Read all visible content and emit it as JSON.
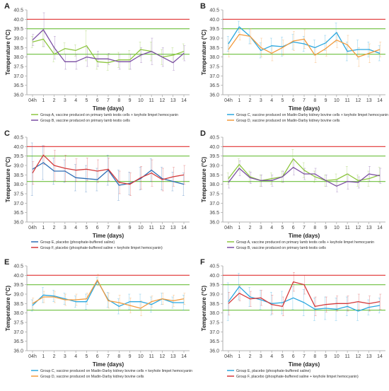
{
  "figure": {
    "common": {
      "ylabel": "Temperature (°C)",
      "xlabel": "Time (days)",
      "x_ticks": [
        "04h",
        "1",
        "2",
        "3",
        "4",
        "5",
        "6",
        "7",
        "8",
        "9",
        "10",
        "11",
        "12",
        "13",
        "14"
      ],
      "y_ticks": [
        "36.0",
        "36.5",
        "37.0",
        "37.5",
        "38.0",
        "38.5",
        "39.0",
        "39.5",
        "40.0",
        "40.5"
      ],
      "ylim": [
        36.0,
        40.5
      ],
      "ref_lines": [
        {
          "value": 40.0,
          "color": "#e03030"
        },
        {
          "value": 39.5,
          "color": "#6cbf3c"
        },
        {
          "value": 38.15,
          "color": "#6cbf3c"
        }
      ]
    }
  },
  "chart_data": [
    {
      "panel": "A",
      "type": "line",
      "series": [
        {
          "name": "Group A, vaccine produced on primary lamb testis cells + keyhole limpet hemocyanin",
          "color": "#8dc63f",
          "values": [
            38.8,
            38.95,
            38.15,
            38.45,
            38.35,
            38.6,
            37.75,
            37.7,
            37.85,
            37.85,
            38.4,
            38.3,
            38.0,
            38.1,
            38.3
          ],
          "errors": [
            0.3,
            0.4,
            0.4,
            0.3,
            0.3,
            0.8,
            0.4,
            0.4,
            0.4,
            0.5,
            0.4,
            0.5,
            0.4,
            0.4,
            0.4
          ]
        },
        {
          "name": "Group B, vaccine produced on primary lamb testis cells",
          "color": "#7b4ea3",
          "values": [
            38.9,
            39.45,
            38.5,
            37.75,
            37.75,
            38.0,
            37.9,
            37.9,
            37.75,
            37.75,
            38.1,
            38.3,
            38.0,
            37.7,
            38.2
          ],
          "errors": [
            0.3,
            0.9,
            0.6,
            0.4,
            0.4,
            0.5,
            0.4,
            0.3,
            0.4,
            0.4,
            0.4,
            0.7,
            0.5,
            0.4,
            0.4
          ]
        }
      ]
    },
    {
      "panel": "B",
      "type": "line",
      "series": [
        {
          "name": "Group C, vaccine produced on Madin-Darby kidney bovine cells + keyhole limpet hemocyanin",
          "color": "#2aa7df",
          "values": [
            38.7,
            39.6,
            39.1,
            38.35,
            38.6,
            38.55,
            38.8,
            38.7,
            38.5,
            38.75,
            39.3,
            38.3,
            38.4,
            38.4,
            38.2
          ],
          "errors": [
            0.4,
            0.3,
            0.4,
            0.4,
            0.4,
            0.5,
            0.4,
            0.4,
            0.4,
            0.4,
            0.5,
            0.5,
            0.5,
            0.4,
            0.4
          ]
        },
        {
          "name": "Group D, vaccine produced on Madin-Darby kidney bovine cells",
          "color": "#f39a3c",
          "values": [
            38.4,
            39.2,
            39.1,
            38.5,
            38.2,
            38.5,
            38.85,
            38.95,
            38.1,
            38.45,
            38.9,
            38.65,
            38.0,
            38.2,
            38.4
          ],
          "errors": [
            0.4,
            0.3,
            0.4,
            0.5,
            0.4,
            0.4,
            0.5,
            0.5,
            0.4,
            0.4,
            0.4,
            0.5,
            0.5,
            0.5,
            0.4
          ]
        }
      ]
    },
    {
      "panel": "C",
      "type": "line",
      "series": [
        {
          "name": "Group E, placebo (phosphate-buffered saline)",
          "color": "#2d6db5",
          "values": [
            38.8,
            39.15,
            38.7,
            38.7,
            38.35,
            38.3,
            38.25,
            38.75,
            37.95,
            38.05,
            38.3,
            38.75,
            38.3,
            38.15,
            38.0
          ],
          "errors": [
            1.4,
            0.9,
            0.7,
            0.6,
            0.7,
            0.7,
            0.6,
            0.8,
            0.8,
            0.6,
            0.6,
            0.6,
            0.6,
            0.5,
            0.6
          ]
        },
        {
          "name": "Group F, placebo (phosphate-buffered saline + keyhole limpet hemocyanin)",
          "color": "#d4393a",
          "values": [
            38.6,
            39.55,
            39.0,
            38.85,
            38.75,
            38.8,
            38.7,
            38.8,
            38.1,
            38.0,
            38.35,
            38.6,
            38.25,
            38.4,
            38.5
          ],
          "errors": [
            0.6,
            0.5,
            0.8,
            0.7,
            0.6,
            0.6,
            0.6,
            0.6,
            0.6,
            0.6,
            0.6,
            0.7,
            0.6,
            0.5,
            0.5
          ]
        }
      ]
    },
    {
      "panel": "D",
      "type": "line",
      "series": [
        {
          "name": "Group A, vaccine produced on primary lamb testis cells + keyhole limpet hemocyanin",
          "color": "#8dc63f",
          "values": [
            38.3,
            39.05,
            38.4,
            38.2,
            38.3,
            38.4,
            39.35,
            38.75,
            38.4,
            38.2,
            38.25,
            38.55,
            38.2,
            38.3,
            38.5
          ],
          "errors": [
            0.3,
            0.3,
            0.3,
            0.3,
            0.3,
            0.3,
            0.5,
            0.4,
            0.3,
            0.3,
            0.3,
            0.4,
            0.3,
            0.4,
            0.4
          ]
        },
        {
          "name": "Group B, vaccine produced on primary lamb testis cells",
          "color": "#7b4ea3",
          "values": [
            38.1,
            38.85,
            38.35,
            38.2,
            38.2,
            38.4,
            38.9,
            38.55,
            38.55,
            38.2,
            37.9,
            38.15,
            38.1,
            38.55,
            38.45
          ],
          "errors": [
            0.3,
            0.4,
            0.3,
            0.3,
            0.3,
            0.3,
            0.4,
            0.3,
            0.3,
            0.3,
            0.3,
            0.4,
            0.3,
            0.4,
            0.4
          ]
        }
      ]
    },
    {
      "panel": "E",
      "type": "line",
      "series": [
        {
          "name": "Group C, vaccine produced on Madin-Darby kidney bovine cells + keyhole limpet hemocyanin",
          "color": "#2aa7df",
          "values": [
            38.4,
            38.95,
            38.9,
            38.75,
            38.6,
            38.6,
            39.7,
            38.7,
            38.35,
            38.6,
            38.6,
            38.45,
            38.75,
            38.55,
            38.55
          ],
          "errors": [
            0.3,
            0.4,
            0.3,
            0.3,
            0.3,
            0.4,
            0.2,
            0.4,
            0.4,
            0.4,
            0.4,
            0.4,
            0.3,
            0.3,
            0.4
          ]
        },
        {
          "name": "Group D, vaccine produced on Madin-Darby kidney bovine cells",
          "color": "#f39a3c",
          "values": [
            38.5,
            38.85,
            38.85,
            38.7,
            38.7,
            38.75,
            39.75,
            38.65,
            38.55,
            38.4,
            38.25,
            38.6,
            38.75,
            38.65,
            38.75
          ],
          "errors": [
            0.3,
            0.3,
            0.3,
            0.3,
            0.3,
            0.3,
            0.3,
            0.4,
            0.4,
            0.4,
            0.4,
            0.3,
            0.3,
            0.3,
            0.3
          ]
        }
      ]
    },
    {
      "panel": "F",
      "type": "line",
      "series": [
        {
          "name": "Group E, placebo (phosphate-buffered saline)",
          "color": "#2aa7df",
          "values": [
            38.6,
            39.4,
            38.85,
            38.7,
            38.5,
            38.55,
            38.8,
            38.55,
            38.2,
            38.25,
            38.2,
            38.35,
            38.1,
            38.3,
            38.4
          ],
          "errors": [
            1.0,
            0.7,
            0.5,
            0.5,
            0.6,
            0.6,
            0.6,
            0.7,
            0.6,
            0.6,
            0.6,
            0.5,
            0.5,
            0.4,
            0.4
          ]
        },
        {
          "name": "Group F, placebo (phosphate-buffered saline + keyhole limpet hemocyanin)",
          "color": "#d4393a",
          "values": [
            38.5,
            39.05,
            38.75,
            38.8,
            38.45,
            38.35,
            39.65,
            39.5,
            38.35,
            38.45,
            38.5,
            38.5,
            38.6,
            38.5,
            38.6
          ],
          "errors": [
            0.6,
            0.4,
            0.4,
            0.4,
            0.5,
            0.5,
            0.5,
            0.5,
            0.5,
            0.4,
            0.4,
            0.4,
            0.4,
            0.4,
            0.4
          ]
        }
      ]
    }
  ]
}
